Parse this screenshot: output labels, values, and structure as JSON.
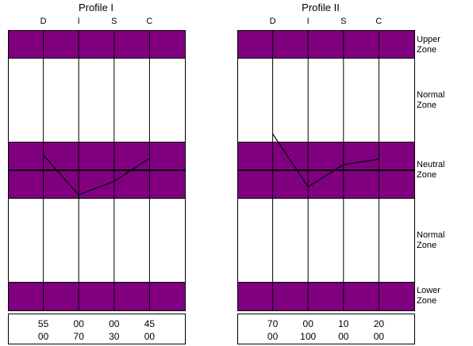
{
  "chart_data": [
    {
      "type": "line",
      "title": "Profile I",
      "categories": [
        "D",
        "I",
        "S",
        "C"
      ],
      "values": [
        55,
        70,
        30,
        45
      ],
      "value_scale": "score 0-100 mapped across zones; line crosses neutral band",
      "scores_row1": [
        "55",
        "00",
        "00",
        "45"
      ],
      "scores_row2": [
        "00",
        "70",
        "30",
        "00"
      ]
    },
    {
      "type": "line",
      "title": "Profile II",
      "categories": [
        "D",
        "I",
        "S",
        "C"
      ],
      "values": [
        70,
        100,
        10,
        20
      ],
      "scores_row1": [
        "70",
        "00",
        "10",
        "20"
      ],
      "scores_row2": [
        "00",
        "100",
        "00",
        "00"
      ]
    }
  ],
  "zones": [
    {
      "line1": "Upper",
      "line2": "Zone"
    },
    {
      "line1": "Normal",
      "line2": "Zone"
    },
    {
      "line1": "Neutral",
      "line2": "Zone"
    },
    {
      "line1": "Normal",
      "line2": "Zone"
    },
    {
      "line1": "Lower",
      "line2": "Zone"
    }
  ],
  "colors": {
    "band": "#800080",
    "grid": "#000000",
    "line": "#000000",
    "background": "#ffffff"
  }
}
